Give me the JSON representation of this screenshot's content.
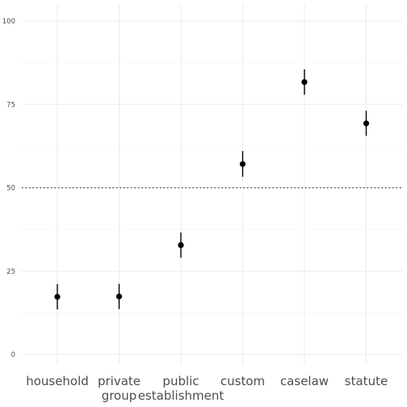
{
  "chart_data": {
    "type": "scatter",
    "categories": [
      "household",
      "private\ngroup",
      "public\nestablishment",
      "custom",
      "caselaw",
      "statute"
    ],
    "values": [
      17.3,
      17.4,
      32.8,
      57.1,
      81.7,
      69.3
    ],
    "lower": [
      13.5,
      13.6,
      29.0,
      53.3,
      77.9,
      65.6
    ],
    "upper": [
      21.1,
      21.2,
      36.6,
      61.0,
      85.5,
      73.1
    ],
    "ylim": [
      0,
      100
    ],
    "yticks": [
      0,
      25,
      50,
      75,
      100
    ],
    "reference_line": 50,
    "grid": true,
    "title": "",
    "xlabel": "",
    "ylabel": ""
  }
}
